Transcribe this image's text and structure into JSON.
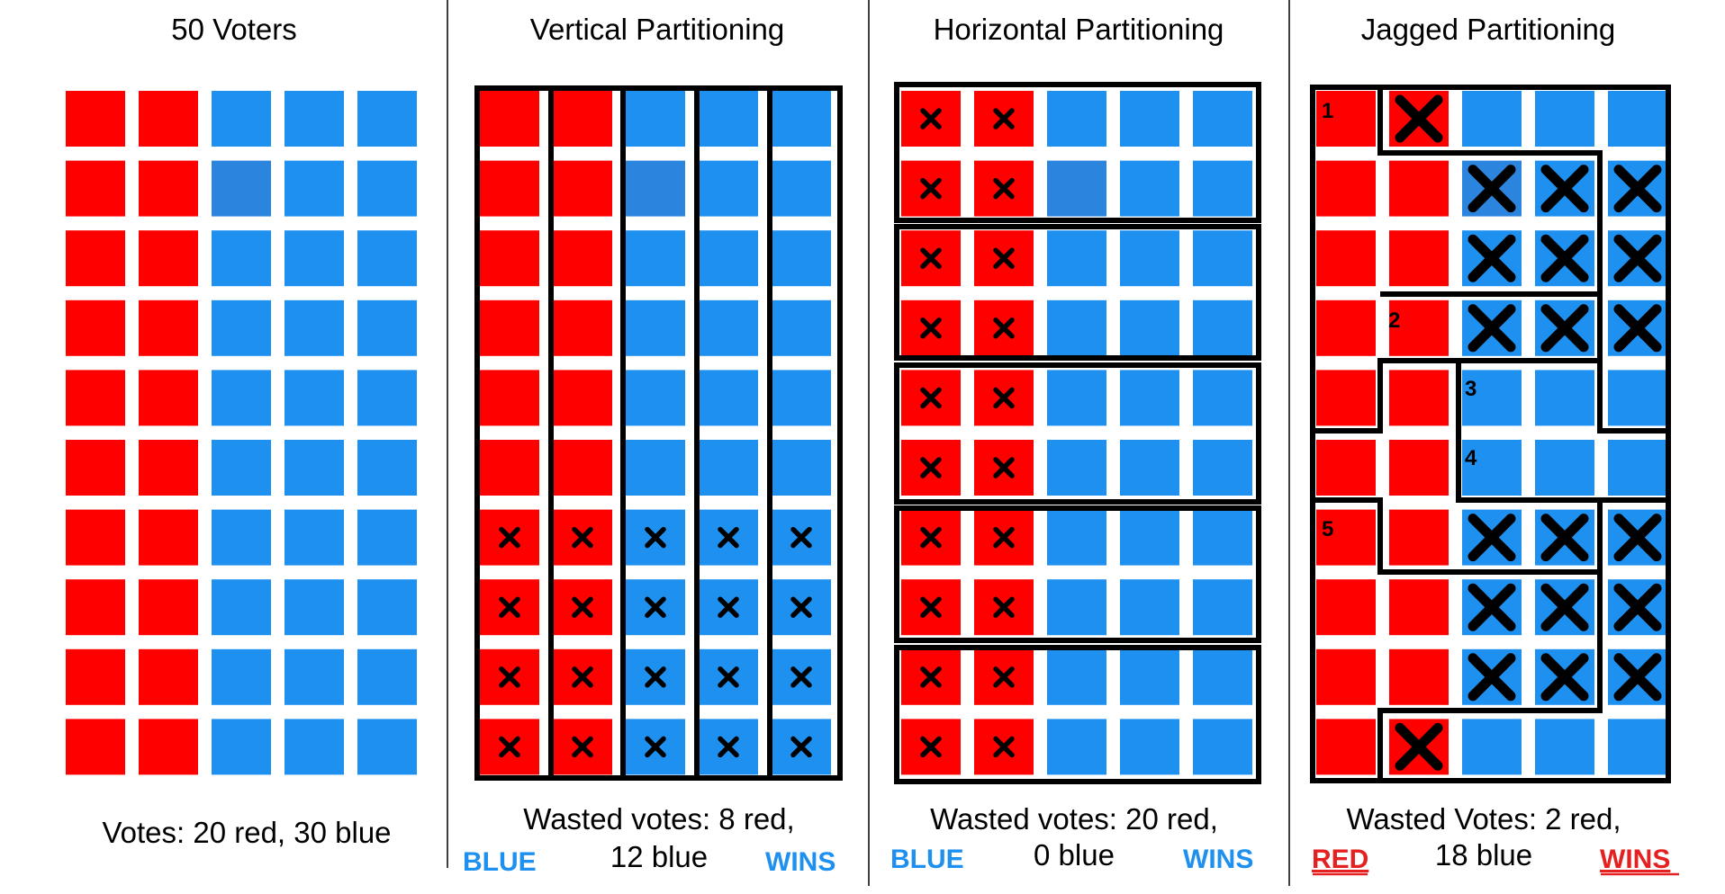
{
  "colors": {
    "red": "#ff0000",
    "blue": "#1e90ef",
    "pale_blue": "#2b85de",
    "line": "#000000",
    "win_blue": "#1e90ef",
    "win_red": "#e52020"
  },
  "panels": [
    {
      "title": "50 Voters",
      "caption_lines": [
        "Votes: 20 red, 30 blue"
      ]
    },
    {
      "title": "Vertical Partitioning",
      "caption_lines": [
        "Wasted votes: 8 red,",
        "12 blue"
      ],
      "winner_word": "BLUE",
      "wins_word": "WINS",
      "winner_color": "#1e90ef"
    },
    {
      "title": "Horizontal Partitioning",
      "caption_lines": [
        "Wasted votes: 20 red,",
        "0 blue"
      ],
      "winner_word": "BLUE",
      "wins_word": "WINS",
      "winner_color": "#1e90ef"
    },
    {
      "title": "Jagged Partitioning",
      "caption_lines": [
        "Wasted Votes: 2 red,",
        "18 blue"
      ],
      "winner_word": "RED",
      "wins_word": "WINS",
      "winner_color": "#e52020"
    }
  ],
  "grid": {
    "rows": 10,
    "cols": 5,
    "cell_colors": [
      [
        "red",
        "red",
        "blue",
        "blue",
        "blue"
      ],
      [
        "red",
        "red",
        "pale",
        "blue",
        "blue"
      ],
      [
        "red",
        "red",
        "blue",
        "blue",
        "blue"
      ],
      [
        "red",
        "red",
        "blue",
        "blue",
        "blue"
      ],
      [
        "red",
        "red",
        "blue",
        "blue",
        "blue"
      ],
      [
        "red",
        "red",
        "blue",
        "blue",
        "blue"
      ],
      [
        "red",
        "red",
        "blue",
        "blue",
        "blue"
      ],
      [
        "red",
        "red",
        "blue",
        "blue",
        "blue"
      ],
      [
        "red",
        "red",
        "blue",
        "blue",
        "blue"
      ],
      [
        "red",
        "red",
        "blue",
        "blue",
        "blue"
      ]
    ]
  },
  "marks": {
    "vertical_wasted_rows": [
      6,
      7,
      8,
      9
    ],
    "horizontal_wasted_cols": [
      0,
      1
    ],
    "jagged_wasted": [
      [
        0,
        1
      ],
      [
        1,
        2
      ],
      [
        1,
        3
      ],
      [
        1,
        4
      ],
      [
        2,
        2
      ],
      [
        2,
        3
      ],
      [
        2,
        4
      ],
      [
        3,
        2
      ],
      [
        3,
        3
      ],
      [
        3,
        4
      ],
      [
        6,
        2
      ],
      [
        6,
        3
      ],
      [
        6,
        4
      ],
      [
        7,
        2
      ],
      [
        7,
        3
      ],
      [
        7,
        4
      ],
      [
        8,
        2
      ],
      [
        8,
        3
      ],
      [
        8,
        4
      ],
      [
        9,
        1
      ]
    ]
  },
  "district_numbers": [
    "1",
    "2",
    "3",
    "4",
    "5"
  ]
}
